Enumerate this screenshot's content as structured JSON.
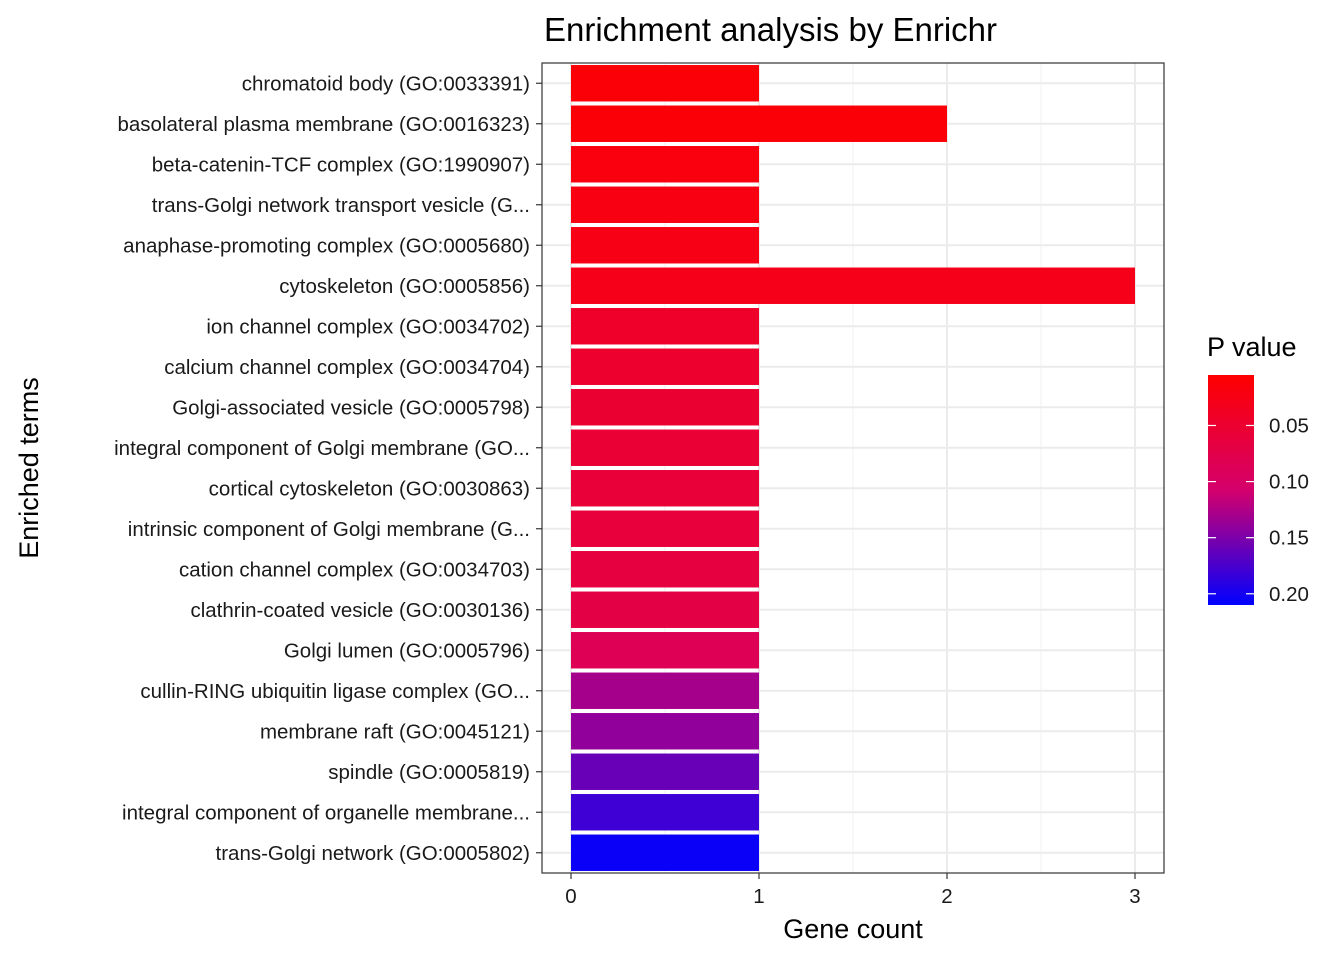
{
  "chart_data": {
    "type": "bar",
    "orientation": "horizontal",
    "title": "Enrichment analysis by Enrichr",
    "xlabel": "Gene count",
    "ylabel": "Enriched terms",
    "xlim": [
      0,
      3.15
    ],
    "xticks": [
      0,
      1,
      2,
      3
    ],
    "grid": true,
    "categories": [
      "chromatoid body (GO:0033391)",
      "basolateral plasma membrane (GO:0016323)",
      "beta-catenin-TCF complex (GO:1990907)",
      "trans-Golgi network transport vesicle (G...",
      "anaphase-promoting complex (GO:0005680)",
      "cytoskeleton (GO:0005856)",
      "ion channel complex (GO:0034702)",
      "calcium channel complex (GO:0034704)",
      "Golgi-associated vesicle (GO:0005798)",
      "integral component of Golgi membrane (GO...",
      "cortical cytoskeleton (GO:0030863)",
      "intrinsic component of Golgi membrane (G...",
      "cation channel complex (GO:0034703)",
      "clathrin-coated vesicle (GO:0030136)",
      "Golgi lumen (GO:0005796)",
      "cullin-RING ubiquitin ligase complex (GO...",
      "membrane raft (GO:0045121)",
      "spindle (GO:0005819)",
      "integral component of organelle membrane...",
      "trans-Golgi network (GO:0005802)"
    ],
    "values": [
      1,
      2,
      1,
      1,
      1,
      3,
      1,
      1,
      1,
      1,
      1,
      1,
      1,
      1,
      1,
      1,
      1,
      1,
      1,
      1
    ],
    "p_values": [
      0.012,
      0.013,
      0.018,
      0.022,
      0.025,
      0.028,
      0.045,
      0.048,
      0.052,
      0.055,
      0.058,
      0.062,
      0.065,
      0.07,
      0.085,
      0.13,
      0.14,
      0.16,
      0.18,
      0.205
    ],
    "legend": {
      "title": "P value",
      "position": "right",
      "low_color": "#FF0000",
      "high_color": "#0000FF",
      "range": [
        0.005,
        0.21
      ],
      "ticks": [
        0.05,
        0.1,
        0.15,
        0.2
      ],
      "tick_labels": [
        "0.05",
        "0.10",
        "0.15",
        "0.20"
      ]
    }
  }
}
